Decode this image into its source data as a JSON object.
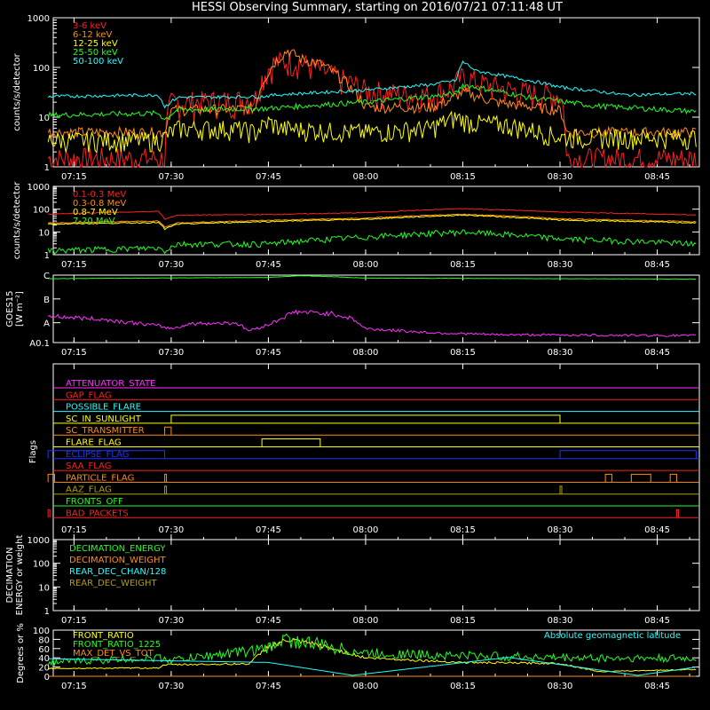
{
  "title": "HESSI Observing Summary, starting on 2016/07/21 07:11:48 UT",
  "time_ticks": [
    "07:15",
    "07:30",
    "07:45",
    "08:00",
    "08:15",
    "08:30",
    "08:45"
  ],
  "colors": {
    "red": "#ff2020",
    "orange": "#ff8c1a",
    "yellow": "#ffff00",
    "green": "#20ff20",
    "cyan": "#20ffff",
    "magenta": "#ff30ff",
    "blue": "#2030ff",
    "olive": "#b0a000",
    "white": "#ffffff",
    "brown": "#e08020"
  },
  "chart_data": [
    {
      "type": "line",
      "ylabel": "counts/s/detector",
      "y_scale": "log",
      "ylim": [
        1,
        1000
      ],
      "y_ticks": [
        "1",
        "10",
        "100",
        "1000"
      ],
      "legend_position": "top-left",
      "series": [
        {
          "name": "3-6 keV",
          "color_key": "red",
          "points": [
            [
              "07:11",
              1.5
            ],
            [
              "07:29",
              1.5
            ],
            [
              "07:30",
              20
            ],
            [
              "07:40",
              22
            ],
            [
              "07:43",
              25
            ],
            [
              "07:46",
              130
            ],
            [
              "07:49",
              140
            ],
            [
              "07:52",
              100
            ],
            [
              "07:56",
              60
            ],
            [
              "08:00",
              35
            ],
            [
              "08:05",
              30
            ],
            [
              "08:10",
              28
            ],
            [
              "08:13",
              38
            ],
            [
              "08:15",
              65
            ],
            [
              "08:18",
              48
            ],
            [
              "08:22",
              36
            ],
            [
              "08:26",
              30
            ],
            [
              "08:30",
              28
            ],
            [
              "08:31",
              1.5
            ],
            [
              "08:51",
              1.5
            ]
          ]
        },
        {
          "name": "6-12 keV",
          "color_key": "orange",
          "points": [
            [
              "07:11",
              5
            ],
            [
              "07:29",
              5
            ],
            [
              "07:30",
              14
            ],
            [
              "07:43",
              15
            ],
            [
              "07:45",
              80
            ],
            [
              "07:48",
              220
            ],
            [
              "07:50",
              150
            ],
            [
              "07:53",
              120
            ],
            [
              "07:55",
              80
            ],
            [
              "07:58",
              35
            ],
            [
              "08:00",
              16
            ],
            [
              "08:10",
              16
            ],
            [
              "08:13",
              22
            ],
            [
              "08:15",
              32
            ],
            [
              "08:20",
              20
            ],
            [
              "08:26",
              16
            ],
            [
              "08:30",
              14
            ],
            [
              "08:31",
              5
            ],
            [
              "08:51",
              5
            ]
          ]
        },
        {
          "name": "12-25 keV",
          "color_key": "yellow",
          "points": [
            [
              "07:11",
              3.5
            ],
            [
              "07:28",
              3.5
            ],
            [
              "07:29",
              4
            ],
            [
              "07:31",
              6
            ],
            [
              "07:40",
              6
            ],
            [
              "07:43",
              5
            ],
            [
              "07:45",
              8
            ],
            [
              "07:47",
              6
            ],
            [
              "08:00",
              5
            ],
            [
              "08:10",
              6
            ],
            [
              "08:14",
              10
            ],
            [
              "08:16",
              8
            ],
            [
              "08:22",
              7
            ],
            [
              "08:30",
              4
            ],
            [
              "08:51",
              4
            ]
          ]
        },
        {
          "name": "25-50 keV",
          "color_key": "green",
          "points": [
            [
              "07:11",
              11
            ],
            [
              "07:28",
              12
            ],
            [
              "07:29",
              9
            ],
            [
              "07:31",
              14
            ],
            [
              "07:45",
              15
            ],
            [
              "08:00",
              20
            ],
            [
              "08:10",
              26
            ],
            [
              "08:14",
              30
            ],
            [
              "08:15",
              45
            ],
            [
              "08:18",
              38
            ],
            [
              "08:25",
              25
            ],
            [
              "08:35",
              17
            ],
            [
              "08:51",
              13
            ]
          ]
        },
        {
          "name": "50-100 keV",
          "color_key": "cyan",
          "points": [
            [
              "07:11",
              26
            ],
            [
              "07:28",
              28
            ],
            [
              "07:29",
              16
            ],
            [
              "07:31",
              25
            ],
            [
              "07:44",
              26
            ],
            [
              "07:46",
              28
            ],
            [
              "08:00",
              35
            ],
            [
              "08:10",
              45
            ],
            [
              "08:14",
              55
            ],
            [
              "08:15",
              130
            ],
            [
              "08:17",
              85
            ],
            [
              "08:22",
              65
            ],
            [
              "08:30",
              40
            ],
            [
              "08:40",
              28
            ],
            [
              "08:51",
              30
            ]
          ]
        }
      ]
    },
    {
      "type": "line",
      "ylabel": "counts/s/detector",
      "y_scale": "log",
      "ylim": [
        1,
        1000
      ],
      "y_ticks": [
        "1",
        "10",
        "100",
        "1000"
      ],
      "legend_position": "top-left",
      "series": [
        {
          "name": "0.1-0.3 MeV",
          "color_key": "red",
          "points": [
            [
              "07:11",
              60
            ],
            [
              "07:28",
              80
            ],
            [
              "07:29",
              35
            ],
            [
              "07:31",
              55
            ],
            [
              "07:45",
              58
            ],
            [
              "08:00",
              70
            ],
            [
              "08:15",
              105
            ],
            [
              "08:30",
              75
            ],
            [
              "08:51",
              55
            ]
          ]
        },
        {
          "name": "0.3-0.8 MeV",
          "color_key": "orange",
          "points": [
            [
              "07:11",
              25
            ],
            [
              "07:28",
              30
            ],
            [
              "07:29",
              16
            ],
            [
              "07:31",
              25
            ],
            [
              "08:00",
              40
            ],
            [
              "08:15",
              60
            ],
            [
              "08:30",
              38
            ],
            [
              "08:51",
              28
            ]
          ]
        },
        {
          "name": "0.8-7 MeV",
          "color_key": "yellow",
          "points": [
            [
              "07:11",
              22
            ],
            [
              "07:28",
              26
            ],
            [
              "07:29",
              13
            ],
            [
              "07:31",
              22
            ],
            [
              "08:00",
              36
            ],
            [
              "08:15",
              55
            ],
            [
              "08:30",
              33
            ],
            [
              "08:51",
              25
            ]
          ]
        },
        {
          "name": "7-20 MeV",
          "color_key": "green",
          "points": [
            [
              "07:11",
              1.5
            ],
            [
              "07:28",
              2
            ],
            [
              "07:29",
              1.5
            ],
            [
              "07:31",
              3
            ],
            [
              "07:45",
              3
            ],
            [
              "08:00",
              6
            ],
            [
              "08:15",
              10
            ],
            [
              "08:30",
              5
            ],
            [
              "08:51",
              3
            ]
          ]
        }
      ]
    },
    {
      "type": "line",
      "ylabel": "GOES15 [W m⁻²]",
      "y_ticks": [
        "A0.1",
        "A",
        "B",
        "C"
      ],
      "series": [
        {
          "name": "",
          "color_key": "green",
          "points": [
            [
              "07:11",
              3.82
            ],
            [
              "07:30",
              3.86
            ],
            [
              "07:45",
              3.88
            ],
            [
              "07:50",
              3.97
            ],
            [
              "07:55",
              3.92
            ],
            [
              "08:00",
              3.85
            ],
            [
              "08:20",
              3.83
            ],
            [
              "08:51",
              3.8
            ]
          ]
        },
        {
          "name": "",
          "color_key": "magenta",
          "points": [
            [
              "07:11",
              1.95
            ],
            [
              "07:20",
              1.75
            ],
            [
              "07:28",
              1.45
            ],
            [
              "07:30",
              1.3
            ],
            [
              "07:33",
              1.55
            ],
            [
              "07:40",
              1.6
            ],
            [
              "07:42",
              1.2
            ],
            [
              "07:45",
              1.5
            ],
            [
              "07:49",
              2.15
            ],
            [
              "07:55",
              2.05
            ],
            [
              "07:58",
              1.8
            ],
            [
              "08:00",
              1.3
            ],
            [
              "08:10",
              1.1
            ],
            [
              "08:20",
              1.0
            ],
            [
              "08:51",
              0.95
            ]
          ]
        }
      ]
    },
    {
      "type": "line",
      "ylabel": "Flags",
      "flags": [
        {
          "name": "ATTENUATOR_STATE",
          "color_key": "magenta",
          "segments": []
        },
        {
          "name": "GAP_FLAG",
          "color_key": "red",
          "segments": []
        },
        {
          "name": "POSSIBLE_FLARE",
          "color_key": "cyan",
          "segments": []
        },
        {
          "name": "SC_IN_SUNLIGHT",
          "color_key": "yellow",
          "segments": [
            [
              "07:30",
              "08:30"
            ]
          ]
        },
        {
          "name": "SC_TRANSMITTER",
          "color_key": "orange",
          "segments": [
            [
              "07:29",
              "07:30"
            ]
          ]
        },
        {
          "name": "FLARE_FLAG",
          "color_key": "yellow",
          "segments": [
            [
              "07:44",
              "07:53"
            ]
          ]
        },
        {
          "name": "ECLIPSE_FLAG",
          "color_key": "blue",
          "segments": [
            [
              "07:11",
              "07:29"
            ],
            [
              "08:30",
              "08:51"
            ]
          ]
        },
        {
          "name": "SAA_FLAG",
          "color_key": "red",
          "segments": []
        },
        {
          "name": "PARTICLE_FLAG",
          "color_key": "orange",
          "segments": [
            [
              "07:11",
              "07:12"
            ],
            [
              "07:29",
              "07:29"
            ],
            [
              "08:37",
              "08:38"
            ],
            [
              "08:41",
              "08:44"
            ],
            [
              "08:47",
              "08:48"
            ]
          ]
        },
        {
          "name": "AAZ_FLAG",
          "color_key": "olive",
          "segments": [
            [
              "07:29",
              "07:29"
            ],
            [
              "08:30",
              "08:30"
            ]
          ]
        },
        {
          "name": "FRONTS_OFF",
          "color_key": "green",
          "segments": []
        },
        {
          "name": "BAD_PACKETS",
          "color_key": "red",
          "segments": [
            [
              "07:11",
              "07:11"
            ],
            [
              "08:48",
              "08:48"
            ]
          ]
        }
      ]
    },
    {
      "type": "line",
      "ylabel": "DECIMATION ENERGY or weight",
      "y_scale": "log",
      "ylim": [
        1,
        1000
      ],
      "y_ticks": [
        "1",
        "10",
        "100",
        "1000"
      ],
      "legend_position": "top-left",
      "series": [
        {
          "name": "DECIMATION_ENERGY",
          "color_key": "green",
          "values": []
        },
        {
          "name": "DECIMATION_WEIGHT",
          "color_key": "orange",
          "values": []
        },
        {
          "name": "REAR_DEC_CHAN/128",
          "color_key": "cyan",
          "values": []
        },
        {
          "name": "REAR_DEC_WEIGHT",
          "color_key": "olive",
          "values": []
        }
      ]
    },
    {
      "type": "line",
      "ylabel": "Degrees or %",
      "ylim": [
        0,
        100
      ],
      "y_ticks": [
        "0",
        "20",
        "40",
        "60",
        "80",
        "100"
      ],
      "legend_position": "top-left",
      "annotation": "Absolute geomagnetic latitude",
      "series": [
        {
          "name": "FRONT_RATIO",
          "color_key": "yellow",
          "points": [
            [
              "07:11",
              17
            ],
            [
              "07:28",
              18
            ],
            [
              "07:29",
              25
            ],
            [
              "07:42",
              27
            ],
            [
              "07:45",
              65
            ],
            [
              "07:48",
              78
            ],
            [
              "07:52",
              70
            ],
            [
              "08:00",
              40
            ],
            [
              "08:15",
              30
            ],
            [
              "08:30",
              28
            ],
            [
              "08:36",
              10
            ],
            [
              "08:51",
              15
            ]
          ]
        },
        {
          "name": "FRONT_RATIO_1225",
          "color_key": "green",
          "points": [
            [
              "07:11",
              30
            ],
            [
              "07:28",
              40
            ],
            [
              "07:30",
              35
            ],
            [
              "07:45",
              60
            ],
            [
              "07:47",
              80
            ],
            [
              "07:52",
              70
            ],
            [
              "08:00",
              50
            ],
            [
              "08:15",
              45
            ],
            [
              "08:30",
              40
            ],
            [
              "08:51",
              38
            ]
          ]
        },
        {
          "name": "MAX_DET_VS_TOT",
          "color_key": "orange",
          "points": [
            [
              "07:11",
              0
            ],
            [
              "08:51",
              0
            ]
          ]
        },
        {
          "name": "Absolute geomagnetic latitude",
          "color_key": "cyan",
          "points": [
            [
              "07:11",
              38
            ],
            [
              "07:45",
              30
            ],
            [
              "07:58",
              2
            ],
            [
              "08:22",
              41
            ],
            [
              "08:42",
              2
            ],
            [
              "08:51",
              20
            ]
          ]
        }
      ]
    }
  ]
}
